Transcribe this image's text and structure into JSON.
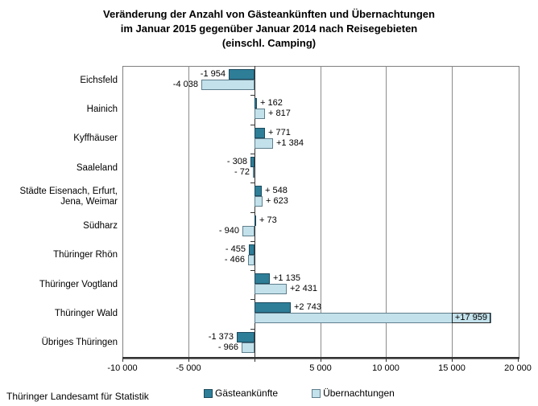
{
  "title": {
    "lines": [
      "Veränderung der Anzahl von Gästeankünften und Übernachtungen",
      "im Januar 2015 gegenüber Januar 2014 nach Reisegebieten",
      "(einschl. Camping)"
    ]
  },
  "footer": {
    "source": "Thüringer Landesamt für Statistik"
  },
  "chart_data": {
    "type": "bar",
    "orientation": "horizontal",
    "grid": "vertical-on",
    "legend_position": "bottom",
    "categories": [
      "Eichsfeld",
      "Hainich",
      "Kyffhäuser",
      "Saaleland",
      "Städte Eisenach, Erfurt,\nJena, Weimar",
      "Südharz",
      "Thüringer Rhön",
      "Thüringer Vogtland",
      "Thüringer Wald",
      "Übriges Thüringen"
    ],
    "series": [
      {
        "name": "Gästeankünfte",
        "color": "#2E7E98",
        "border_color": "#1C4A5E",
        "values": [
          -1954,
          162,
          771,
          -308,
          548,
          73,
          -455,
          1135,
          2743,
          -1373
        ],
        "labels": [
          "-1 954",
          "+ 162",
          "+ 771",
          "- 308",
          "+ 548",
          "+ 73",
          "- 455",
          "+1 135",
          "+2 743",
          "-1 373"
        ]
      },
      {
        "name": "Übernachtungen",
        "color": "#C2E1EB",
        "border_color": "#5F7E8C",
        "values": [
          -4038,
          817,
          1384,
          -72,
          623,
          -940,
          -466,
          2431,
          17959,
          -966
        ],
        "labels": [
          "-4 038",
          "+ 817",
          "+1 384",
          "- 72",
          "+ 623",
          "- 940",
          "- 466",
          "+2 431",
          "+17 959",
          "- 966"
        ],
        "boxed_label_index": 8
      }
    ],
    "x_axis": {
      "min": -10000,
      "max": 20000,
      "ticks": [
        {
          "value": -10000,
          "label": "-10 000"
        },
        {
          "value": -5000,
          "label": "-5 000"
        },
        {
          "value": 0,
          "label": ""
        },
        {
          "value": 5000,
          "label": "5 000"
        },
        {
          "value": 10000,
          "label": "10 000"
        },
        {
          "value": 15000,
          "label": "15 000"
        },
        {
          "value": 20000,
          "label": "20 000"
        }
      ]
    }
  }
}
